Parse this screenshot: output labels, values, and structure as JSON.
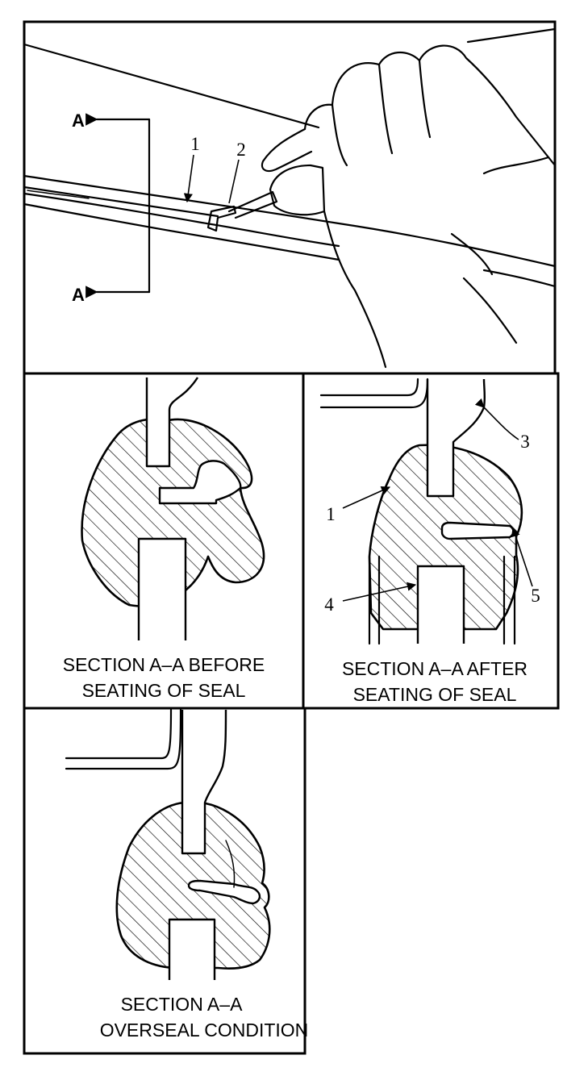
{
  "top_view": {
    "section_marker_top": "A",
    "section_marker_bottom": "A",
    "callout_1": "1",
    "callout_2": "2"
  },
  "panel_before": {
    "caption_line1": "SECTION A–A BEFORE",
    "caption_line2": "SEATING OF SEAL"
  },
  "panel_after": {
    "caption_line1": "SECTION A–A AFTER",
    "caption_line2": "SEATING OF SEAL",
    "callout_1": "1",
    "callout_3": "3",
    "callout_4": "4",
    "callout_5": "5"
  },
  "panel_overseal": {
    "caption_line1": "SECTION A–A",
    "caption_line2": "OVERSEAL CONDITION"
  }
}
